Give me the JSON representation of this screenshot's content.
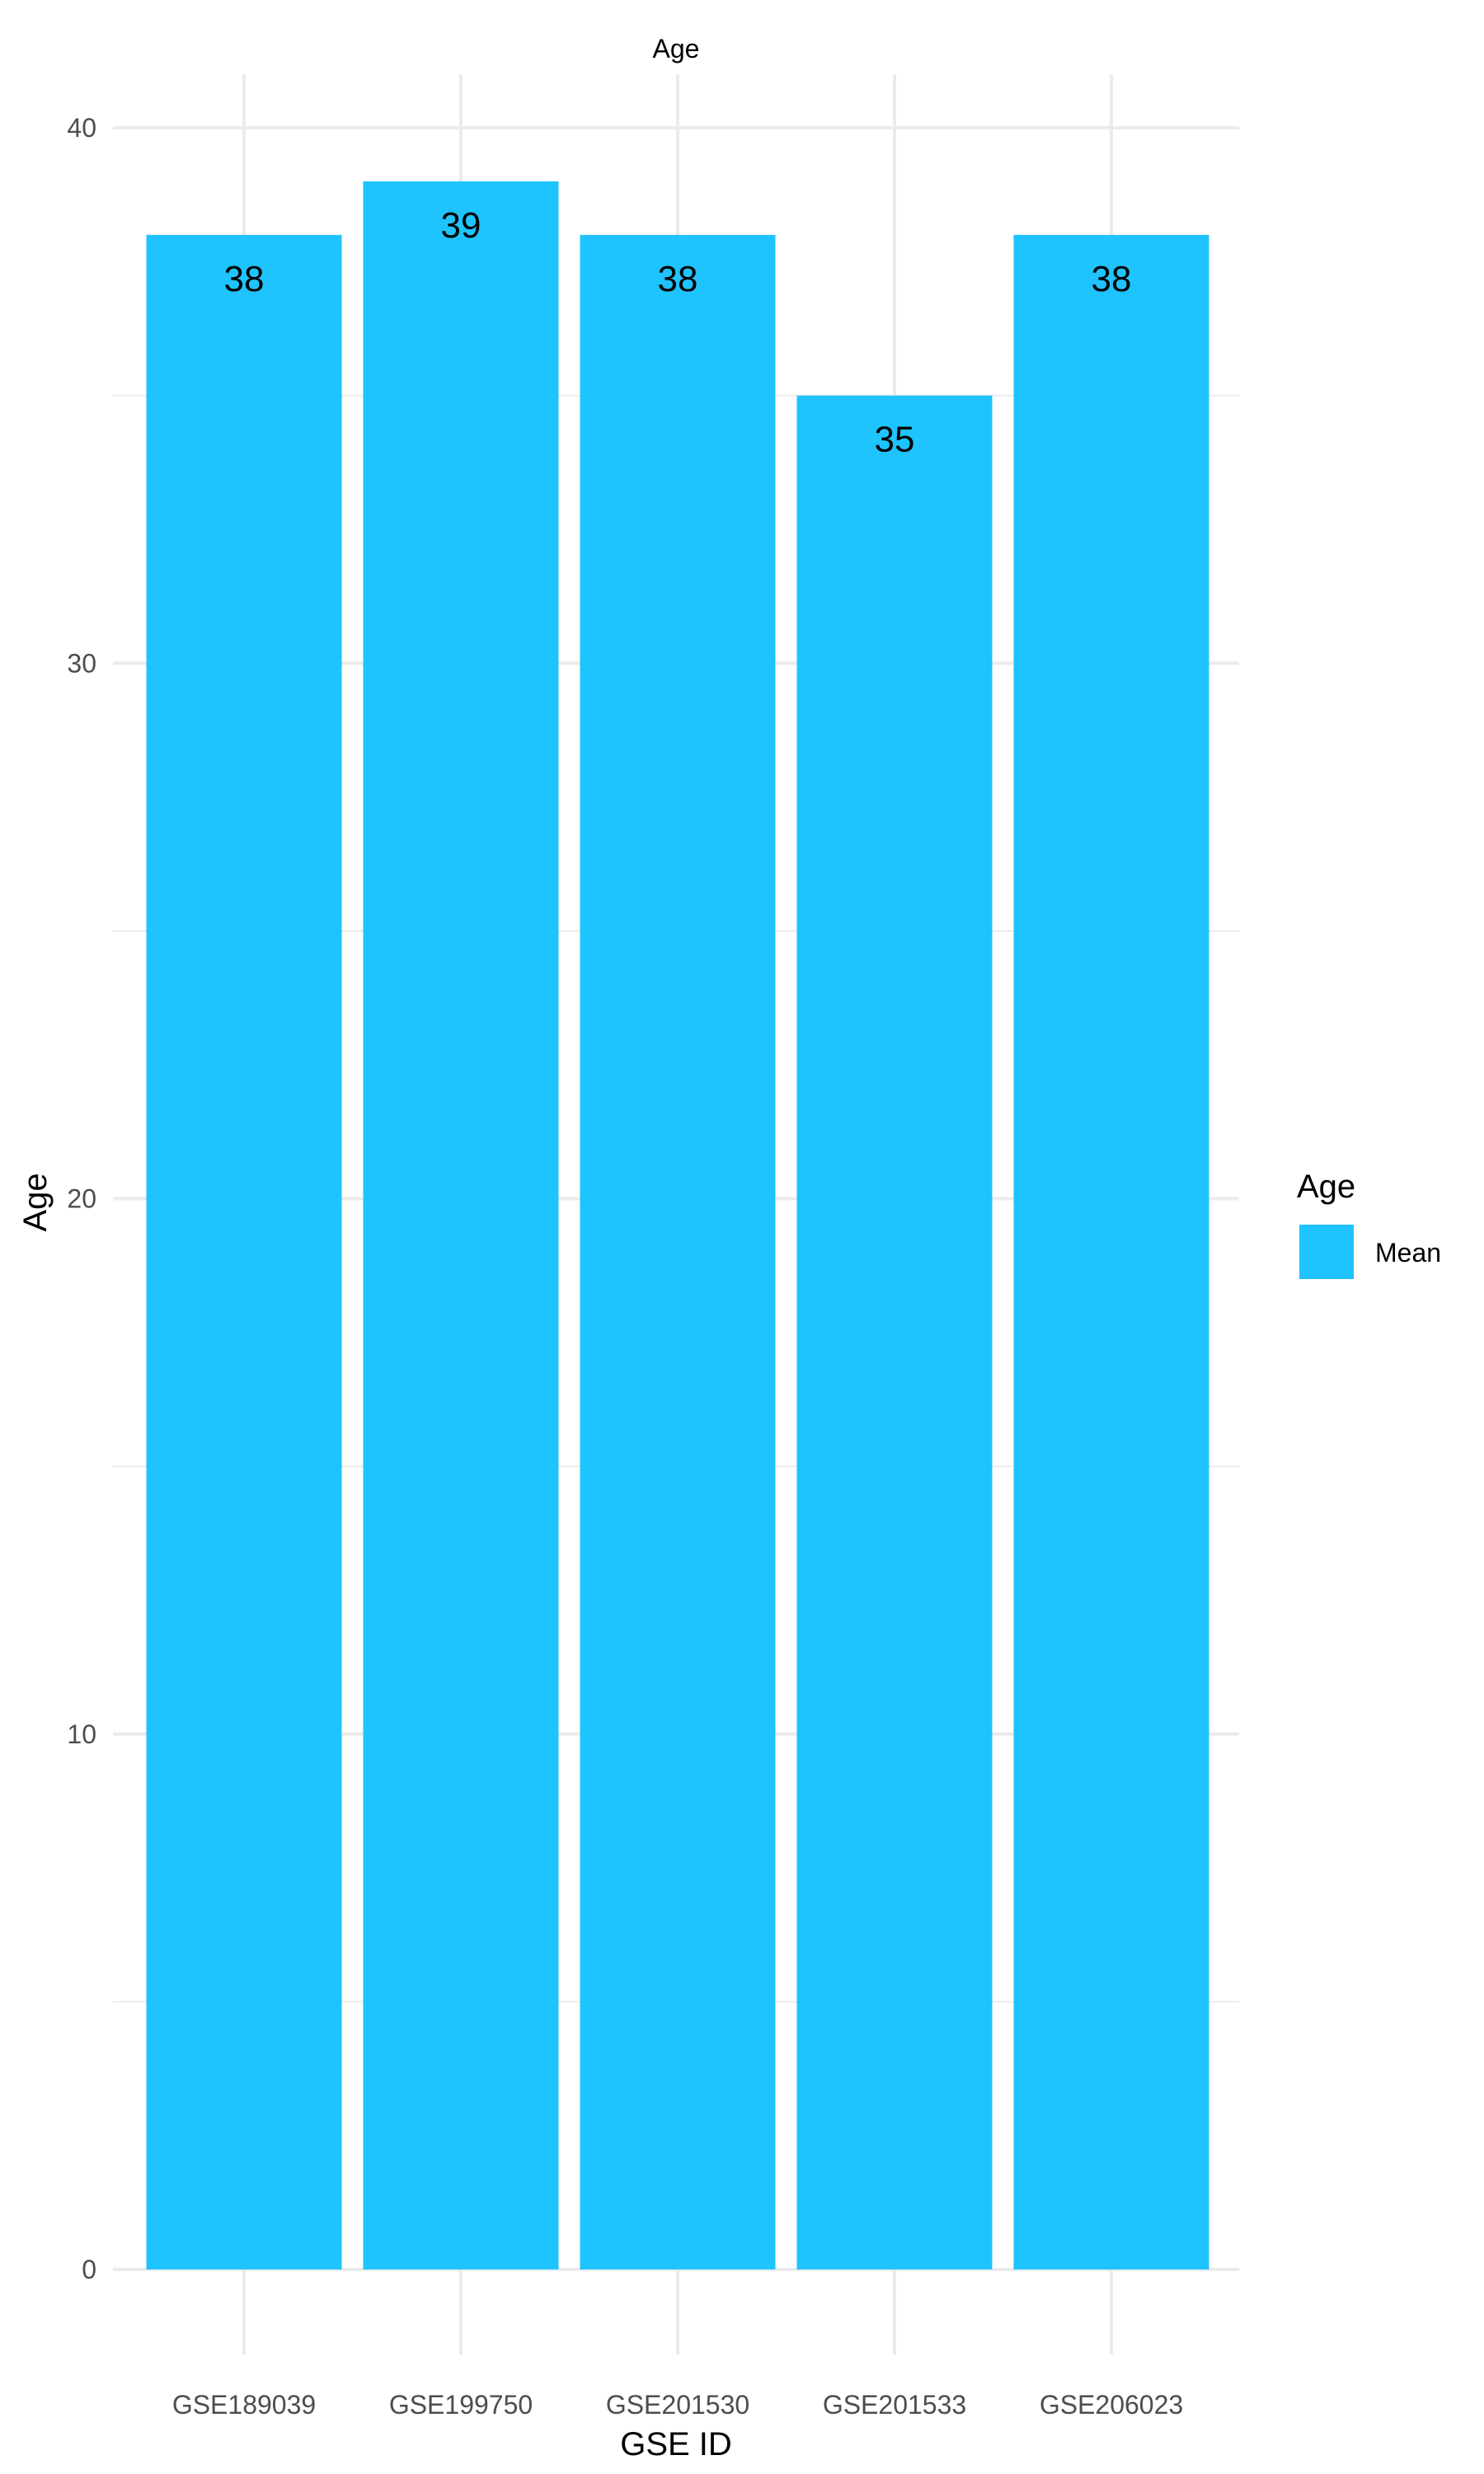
{
  "chart_data": {
    "type": "bar",
    "title": "Age",
    "xlabel": "GSE ID",
    "ylabel": "Age",
    "categories": [
      "GSE189039",
      "GSE199750",
      "GSE201530",
      "GSE201533",
      "GSE206023"
    ],
    "series": [
      {
        "name": "Mean",
        "values": [
          38,
          39,
          38,
          35,
          38
        ],
        "color": "#1fc3fd"
      }
    ],
    "data_labels": [
      "38",
      "39",
      "38",
      "35",
      "38"
    ],
    "ylim": [
      0,
      40
    ],
    "yticks": [
      0,
      10,
      20,
      30,
      40
    ],
    "grid": true,
    "legend": {
      "title": "Age",
      "position": "right",
      "items": [
        "Mean"
      ]
    }
  }
}
